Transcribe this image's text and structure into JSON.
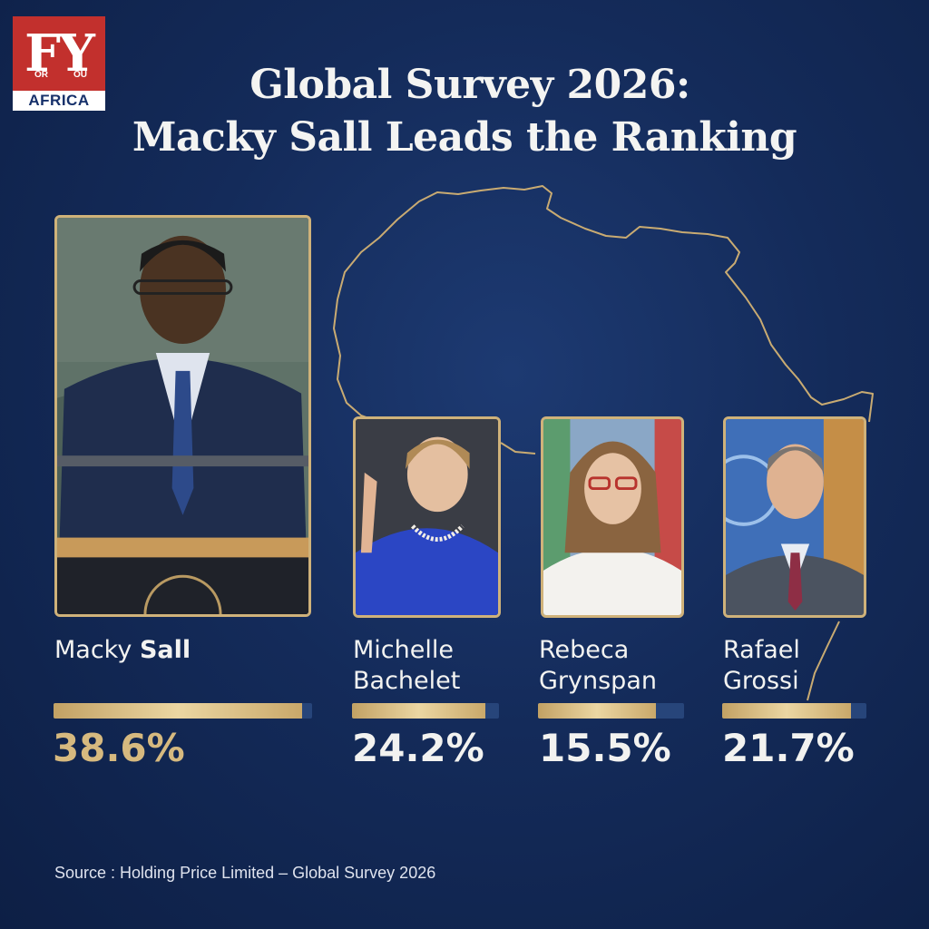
{
  "logo": {
    "letters": "FY",
    "word_left": "OR",
    "word_right": "OU",
    "subtitle": "AFRICA"
  },
  "title": {
    "line1": "Global Survey 2026:",
    "line2": "Macky Sall Leads the Ranking"
  },
  "chart_data": {
    "type": "bar",
    "title": "Global Survey 2026: Macky Sall Leads the Ranking",
    "categories": [
      "Macky Sall",
      "Michelle Bachelet",
      "Rebeca Grynspan",
      "Rafael Grossi"
    ],
    "values": [
      38.6,
      24.2,
      15.5,
      21.7
    ],
    "value_unit": "%",
    "ylim": [
      0,
      40
    ],
    "candidates": [
      {
        "first": "Macky",
        "last": "Sall",
        "value": 38.6,
        "label": "38.6%",
        "bar_fraction": 0.96
      },
      {
        "first": "Michelle",
        "last": "Bachelet",
        "value": 24.2,
        "label": "24.2%",
        "bar_fraction": 0.91
      },
      {
        "first": "Rebeca",
        "last": "Grynspan",
        "value": 15.5,
        "label": "15.5%",
        "bar_fraction": 0.81
      },
      {
        "first": "Rafael",
        "last": "Grossi",
        "value": 21.7,
        "label": "21.7%",
        "bar_fraction": 0.89
      }
    ]
  },
  "colors": {
    "background": "#142b5a",
    "gold": "#cfb27a",
    "bar_track": "#27457a",
    "logo_red": "#c2302d"
  },
  "source": "Source : Holding Price Limited – Global Survey 2026"
}
